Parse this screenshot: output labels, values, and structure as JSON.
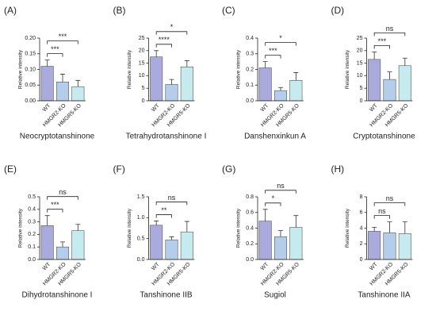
{
  "chart_data": [
    {
      "type": "bar",
      "panel": "(A)",
      "title": "Neocryptotanshinone",
      "y_label": "Relative intensity",
      "categories": [
        "WT",
        "HMGR2-KO",
        "HMGR5-KO"
      ],
      "values": [
        0.11,
        0.06,
        0.045
      ],
      "errors": [
        0.02,
        0.025,
        0.02
      ],
      "colors": [
        "#aaaadc",
        "#b3cdea",
        "#c6ebee"
      ],
      "ylim": [
        0,
        0.2
      ],
      "yticks": [
        {
          "value": 0,
          "label": "0.00"
        },
        {
          "value": 0.05,
          "label": "0.05"
        },
        {
          "value": 0.1,
          "label": "0.10"
        },
        {
          "value": 0.15,
          "label": "0.15"
        },
        {
          "value": 0.2,
          "label": "0.20"
        }
      ],
      "annotations": [
        "***",
        "***"
      ]
    },
    {
      "type": "bar",
      "panel": "(B)",
      "title": "Tetrahydrotanshinone I",
      "y_label": "Relative intensity",
      "categories": [
        "WT",
        "HMGR2-KO",
        "HMGR5-KO"
      ],
      "values": [
        17.5,
        6.5,
        13.5
      ],
      "errors": [
        2.5,
        2,
        2.5
      ],
      "colors": [
        "#aaaadc",
        "#b3cdea",
        "#c6ebee"
      ],
      "ylim": [
        0,
        25
      ],
      "yticks": [
        0,
        5,
        10,
        15,
        20,
        25
      ],
      "annotations": [
        "****",
        "*"
      ]
    },
    {
      "type": "bar",
      "panel": "(C)",
      "title": "Danshenxinkun A",
      "y_label": "Relative intensity",
      "categories": [
        "WT",
        "HMGR2-KO",
        "HMGR5-KO"
      ],
      "values": [
        0.21,
        0.065,
        0.13
      ],
      "errors": [
        0.04,
        0.02,
        0.05
      ],
      "colors": [
        "#aaaadc",
        "#b3cdea",
        "#c6ebee"
      ],
      "ylim": [
        0,
        0.4
      ],
      "yticks": [
        {
          "value": 0,
          "label": "0.0"
        },
        0.1,
        0.2,
        0.3,
        0.4
      ],
      "annotations": [
        "***",
        "*"
      ]
    },
    {
      "type": "bar",
      "panel": "(D)",
      "title": "Cryptotanshinone",
      "y_label": "Relative intensity",
      "categories": [
        "WT",
        "HMGR2-KO",
        "HMGR5-KO"
      ],
      "values": [
        16.5,
        8.5,
        14
      ],
      "errors": [
        3,
        3,
        3
      ],
      "colors": [
        "#aaaadc",
        "#b3cdea",
        "#c6ebee"
      ],
      "ylim": [
        0,
        25
      ],
      "yticks": [
        0,
        5,
        10,
        15,
        20,
        25
      ],
      "annotations": [
        "***",
        "ns"
      ]
    },
    {
      "type": "bar",
      "panel": "(E)",
      "title": "Dihydrotanshinone I",
      "y_label": "Relative intensity",
      "categories": [
        "WT",
        "HMGR2-KO",
        "HMGR5-KO"
      ],
      "values": [
        0.27,
        0.1,
        0.23
      ],
      "errors": [
        0.08,
        0.04,
        0.05
      ],
      "colors": [
        "#aaaadc",
        "#b3cdea",
        "#c6ebee"
      ],
      "ylim": [
        0,
        0.5
      ],
      "yticks": [
        {
          "value": 0,
          "label": "0.0"
        },
        0.1,
        0.2,
        0.3,
        0.4,
        0.5
      ],
      "annotations": [
        "***",
        "ns"
      ]
    },
    {
      "type": "bar",
      "panel": "(F)",
      "title": "Tanshinone IIB",
      "y_label": "Relative intensity",
      "categories": [
        "WT",
        "HMGR2-KO",
        "HMGR5-KO"
      ],
      "values": [
        0.82,
        0.47,
        0.66
      ],
      "errors": [
        0.1,
        0.07,
        0.25
      ],
      "colors": [
        "#aaaadc",
        "#b3cdea",
        "#c6ebee"
      ],
      "ylim": [
        0,
        1.5
      ],
      "yticks": [
        {
          "value": 0,
          "label": "0.0"
        },
        0.5,
        {
          "value": 1,
          "label": "1.0"
        },
        1.5
      ],
      "annotations": [
        "**",
        "ns"
      ]
    },
    {
      "type": "bar",
      "panel": "(G)",
      "title": "Sugiol",
      "y_label": "Relative intensity",
      "categories": [
        "WT",
        "HMGR2-KO",
        "HMGR5-KO"
      ],
      "values": [
        0.49,
        0.29,
        0.41
      ],
      "errors": [
        0.15,
        0.08,
        0.15
      ],
      "colors": [
        "#aaaadc",
        "#b3cdea",
        "#c6ebee"
      ],
      "ylim": [
        0,
        0.8
      ],
      "yticks": [
        {
          "value": 0,
          "label": "0.0"
        },
        0.2,
        0.4,
        0.6,
        0.8
      ],
      "annotations": [
        "*",
        "ns"
      ]
    },
    {
      "type": "bar",
      "panel": "(H)",
      "title": "Tanshinone IIA",
      "y_label": "Relative intensity",
      "categories": [
        "WT",
        "HMGR2-KO",
        "HMGR5-KO"
      ],
      "values": [
        3.6,
        3.4,
        3.3
      ],
      "errors": [
        0.5,
        1.4,
        1.5
      ],
      "colors": [
        "#aaaadc",
        "#b3cdea",
        "#c6ebee"
      ],
      "ylim": [
        0,
        8
      ],
      "yticks": [
        0,
        2,
        4,
        6,
        8
      ],
      "annotations": [
        "ns",
        "ns"
      ]
    }
  ]
}
